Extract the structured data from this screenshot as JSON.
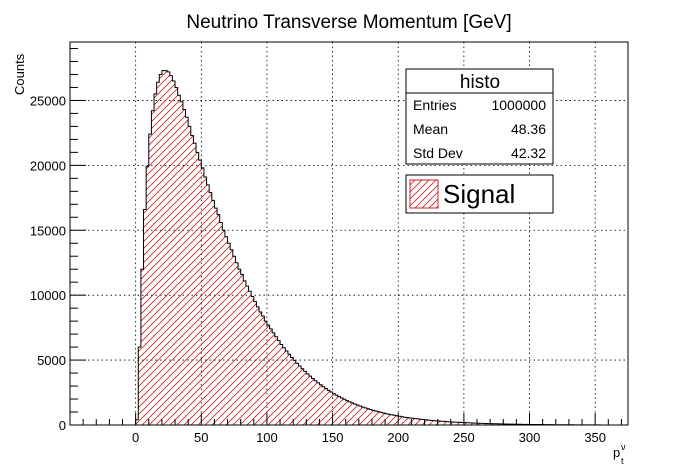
{
  "chart_data": {
    "type": "bar",
    "title": "Neutrino Transverse Momentum [GeV]",
    "xlabel": "p",
    "xlabel_sub": "t",
    "xlabel_sup": "ν",
    "ylabel": "Counts",
    "xlim": [
      -50,
      375
    ],
    "ylim": [
      0,
      29500
    ],
    "x_ticks": [
      0,
      50,
      100,
      150,
      200,
      250,
      300,
      350
    ],
    "y_ticks": [
      0,
      5000,
      10000,
      15000,
      20000,
      25000
    ],
    "grid": true,
    "legend_position": "top-right",
    "bin_width": 2,
    "x_start": 0,
    "values": [
      400,
      6000,
      12000,
      16600,
      19900,
      22400,
      24200,
      25500,
      26400,
      27000,
      27300,
      27300,
      27200,
      26900,
      26500,
      26000,
      25400,
      24900,
      24300,
      23700,
      23000,
      22300,
      21700,
      21000,
      20400,
      19800,
      19100,
      18500,
      17900,
      17300,
      16700,
      16200,
      15600,
      15000,
      14500,
      14000,
      13500,
      13000,
      12500,
      12000,
      11600,
      11100,
      10700,
      10300,
      9900,
      9500,
      9100,
      8700,
      8400,
      8000,
      7700,
      7400,
      7100,
      6800,
      6500,
      6200,
      5950,
      5700,
      5450,
      5200,
      4980,
      4750,
      4540,
      4330,
      4130,
      3940,
      3760,
      3580,
      3410,
      3250,
      3100,
      2950,
      2810,
      2670,
      2540,
      2420,
      2300,
      2190,
      2080,
      1980,
      1880,
      1790,
      1700,
      1620,
      1540,
      1460,
      1390,
      1320,
      1250,
      1190,
      1130,
      1070,
      1020,
      970,
      920,
      870,
      830,
      790,
      750,
      710,
      670,
      640,
      600,
      570,
      540,
      520,
      490,
      470,
      440,
      420,
      400,
      380,
      360,
      340,
      320,
      305,
      290,
      275,
      260,
      245,
      230,
      220,
      210,
      200,
      190,
      180,
      170,
      160,
      150,
      142,
      135,
      128,
      122,
      116,
      110,
      104,
      98,
      93,
      88,
      83,
      78,
      74,
      70,
      66,
      62,
      58,
      55,
      52,
      49,
      46,
      43,
      40,
      38,
      36,
      34,
      32,
      30,
      28,
      26,
      24,
      22,
      20,
      19,
      18,
      17,
      16,
      15,
      14,
      13,
      12,
      11,
      10,
      9,
      8,
      7,
      6,
      5,
      4,
      3,
      2,
      2,
      1
    ],
    "series": [
      {
        "name": "Signal",
        "color": "#cc2222",
        "fill": "hatch-diagonal"
      }
    ]
  },
  "stats_box": {
    "title": "histo",
    "rows": [
      {
        "label": "Entries",
        "value": "1000000"
      },
      {
        "label": "Mean",
        "value": "48.36"
      },
      {
        "label": "Std Dev",
        "value": "42.32"
      }
    ]
  },
  "legend": {
    "label": "Signal"
  }
}
